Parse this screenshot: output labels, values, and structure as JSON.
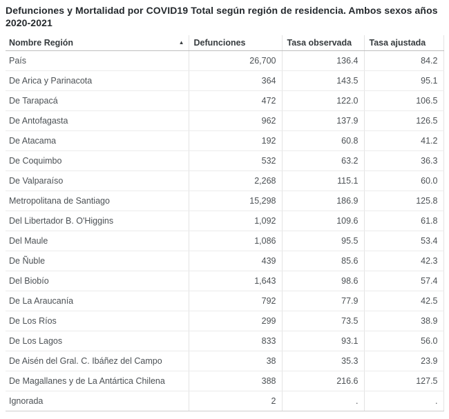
{
  "title": "Defunciones y Mortalidad por COVID19 Total según región de residencia. Ambos sexos años 2020-2021",
  "header": {
    "sort_icon": "▲",
    "sort_column": "Nombre Región",
    "sort_direction": "ascending"
  },
  "chart_data": {
    "type": "table",
    "title": "Defunciones y Mortalidad por COVID19 Total según región de residencia. Ambos sexos años 2020-2021",
    "columns": [
      "Nombre Región",
      "Defunciones",
      "Tasa observada",
      "Tasa ajustada"
    ],
    "rows": [
      [
        "País",
        "26,700",
        "136.4",
        "84.2"
      ],
      [
        "De Arica y Parinacota",
        "364",
        "143.5",
        "95.1"
      ],
      [
        "De Tarapacá",
        "472",
        "122.0",
        "106.5"
      ],
      [
        "De Antofagasta",
        "962",
        "137.9",
        "126.5"
      ],
      [
        "De Atacama",
        "192",
        "60.8",
        "41.2"
      ],
      [
        "De Coquimbo",
        "532",
        "63.2",
        "36.3"
      ],
      [
        "De Valparaíso",
        "2,268",
        "115.1",
        "60.0"
      ],
      [
        "Metropolitana de Santiago",
        "15,298",
        "186.9",
        "125.8"
      ],
      [
        "Del Libertador B. O'Higgins",
        "1,092",
        "109.6",
        "61.8"
      ],
      [
        "Del Maule",
        "1,086",
        "95.5",
        "53.4"
      ],
      [
        "De Ñuble",
        "439",
        "85.6",
        "42.3"
      ],
      [
        "Del Biobío",
        "1,643",
        "98.6",
        "57.4"
      ],
      [
        "De La Araucanía",
        "792",
        "77.9",
        "42.5"
      ],
      [
        "De Los Ríos",
        "299",
        "73.5",
        "38.9"
      ],
      [
        "De Los Lagos",
        "833",
        "93.1",
        "56.0"
      ],
      [
        "De Aisén del Gral. C. Ibáñez del Campo",
        "38",
        "35.3",
        "23.9"
      ],
      [
        "De Magallanes y de La Antártica Chilena",
        "388",
        "216.6",
        "127.5"
      ],
      [
        "Ignorada",
        "2",
        ".",
        "."
      ]
    ]
  },
  "colors": {
    "title_text": "#24292d",
    "header_text": "#363b3e",
    "cell_text": "#4b5054",
    "grid_line": "#e3e3e3",
    "row_separator": "#ebebeb",
    "header_underline": "#bdbdbd",
    "background": "#ffffff"
  }
}
